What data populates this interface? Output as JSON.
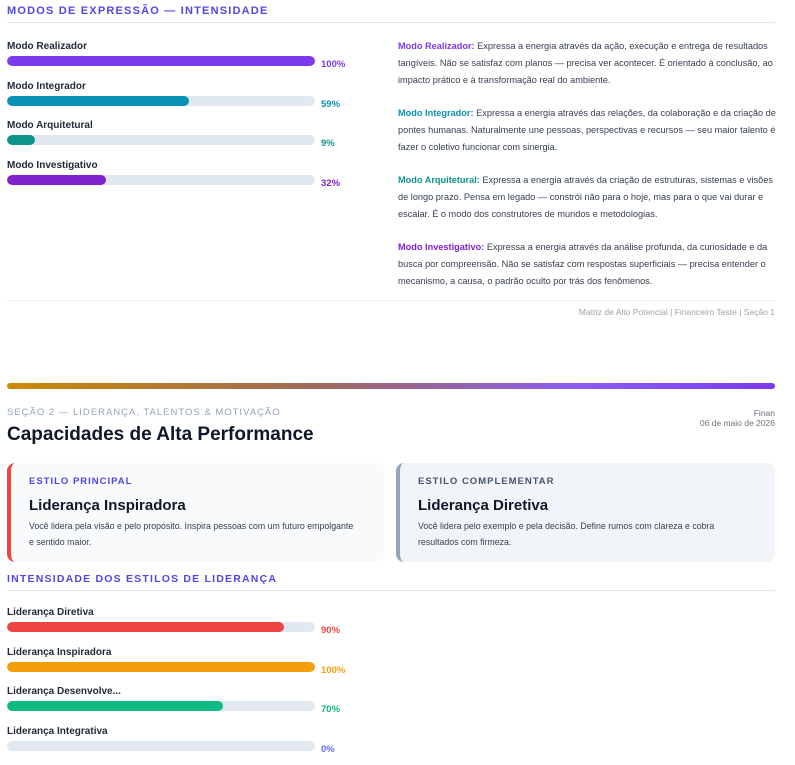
{
  "section1": {
    "title": "MODOS DE EXPRESSÃO — INTENSIDADE",
    "modes": [
      {
        "label": "Modo Realizador",
        "value": 100,
        "pct": "100%",
        "color": "#7c3aed"
      },
      {
        "label": "Modo Integrador",
        "value": 59,
        "pct": "59%",
        "color": "#0891b2"
      },
      {
        "label": "Modo Arquitetural",
        "value": 9,
        "pct": "9%",
        "color": "#0d9488"
      },
      {
        "label": "Modo Investigativo",
        "value": 32,
        "pct": "32%",
        "color": "#7e22ce"
      }
    ],
    "descriptions": [
      {
        "name": "Modo Realizador",
        "text": "Expressa a energia através da ação, execução e entrega de resultados tangíveis. Não se satisfaz com planos — precisa ver acontecer. É orientado à conclusão, ao impacto prático e à transformação real do ambiente.",
        "color": "#7c3aed"
      },
      {
        "name": "Modo Integrador",
        "text": "Expressa a energia através das relações, da colaboração e da criação de pontes humanas. Naturalmente une pessoas, perspectivas e recursos — seu maior talento é fazer o coletivo funcionar com sinergia.",
        "color": "#0891b2"
      },
      {
        "name": "Modo Arquitetural",
        "text": "Expressa a energia através da criação de estruturas, sistemas e visões de longo prazo. Pensa em legado — constrói não para o hoje, mas para o que vai durar e escalar. É o modo dos construtores de mundos e metodologias.",
        "color": "#0d9488"
      },
      {
        "name": "Modo Investigativo",
        "text": "Expressa a energia através da análise profunda, da curiosidade e da busca por compreensão. Não se satisfaz com respostas superficiais — precisa entender o mecanismo, a causa, o padrão oculto por trás dos fenômenos.",
        "color": "#7e22ce"
      }
    ],
    "footer": "Matriz de Alto Potencial | Financeiro Teste | Seção 1"
  },
  "section2": {
    "kicker": "SEÇÃO 2 — LIDERANÇA, TALENTOS & MOTIVAÇÃO",
    "title": "Capacidades de Alta Performance",
    "name": "Finan",
    "date": "06 de maio de 2026",
    "main_card": {
      "kicker": "ESTILO PRINCIPAL",
      "title": "Liderança Inspiradora",
      "text": "Você lidera pela visão e pelo propósito. Inspira pessoas com um futuro empolgante e sentido maior.",
      "kicker_color": "#4f46e5"
    },
    "comp_card": {
      "kicker": "ESTILO COMPLEMENTAR",
      "title": "Liderança Diretiva",
      "text": "Você lidera pelo exemplo e pela decisão. Define rumos com clareza e cobra resultados com firmeza.",
      "kicker_color": "#475569"
    },
    "intensity_title": "INTENSIDADE DOS ESTILOS DE LIDERANÇA",
    "styles": [
      {
        "label": "Liderança Diretiva",
        "value": 90,
        "pct": "90%",
        "color": "#ef4444"
      },
      {
        "label": "Liderança Inspiradora",
        "value": 100,
        "pct": "100%",
        "color": "#f59e0b"
      },
      {
        "label": "Liderança Desenvolve...",
        "value": 70,
        "pct": "70%",
        "color": "#10b981"
      },
      {
        "label": "Liderança Integrativa",
        "value": 0,
        "pct": "0%",
        "color": "#6366f1"
      }
    ]
  }
}
